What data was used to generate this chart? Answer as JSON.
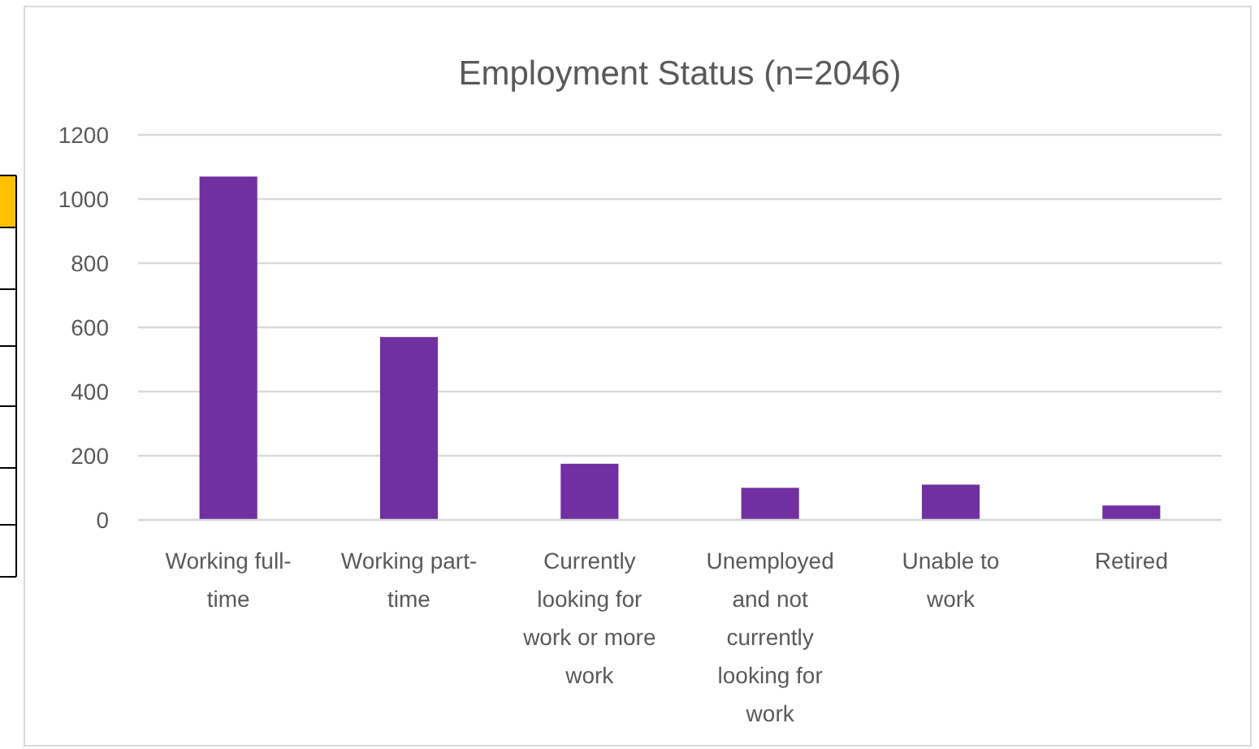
{
  "chart_data": {
    "type": "bar",
    "title": "Employment Status (n=2046)",
    "categories": [
      "Working full-time",
      "Working part-time",
      "Currently looking for work or more work",
      "Unemployed and not currently looking for work",
      "Unable to work",
      "Retired"
    ],
    "values": [
      1070,
      570,
      175,
      100,
      110,
      45
    ],
    "color": "#7030a0",
    "ylim": [
      0,
      1200
    ],
    "yticks": [
      0,
      200,
      400,
      600,
      800,
      1000,
      1200
    ],
    "grid": "y"
  }
}
